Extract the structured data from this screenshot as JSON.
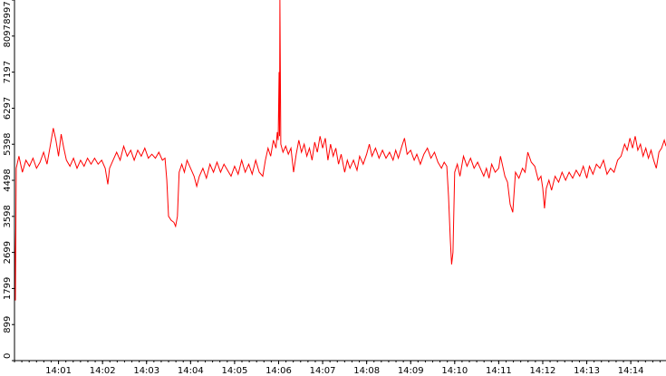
{
  "chart_data": {
    "type": "line",
    "title": "",
    "xlabel": "",
    "ylabel": "",
    "x_ticks": [
      "14:01",
      "14:02",
      "14:03",
      "14:04",
      "14:05",
      "14:06",
      "14:07",
      "14:08",
      "14:09",
      "14:10",
      "14:11",
      "14:12",
      "14:13",
      "14:14"
    ],
    "y_ticks": [
      "0",
      "899",
      "1799",
      "2699",
      "3598",
      "4498",
      "5398",
      "6297",
      "7197",
      "8097",
      "8997"
    ],
    "ylim": [
      0,
      8997
    ],
    "xlim_minutes": [
      0.0,
      14.8
    ],
    "grid": false,
    "legend": "none",
    "series": [
      {
        "color": "#ff0000",
        "points": [
          [
            0.0,
            3300
          ],
          [
            0.02,
            1500
          ],
          [
            0.04,
            4800
          ],
          [
            0.1,
            5100
          ],
          [
            0.18,
            4700
          ],
          [
            0.26,
            5000
          ],
          [
            0.34,
            4850
          ],
          [
            0.42,
            5050
          ],
          [
            0.5,
            4800
          ],
          [
            0.58,
            4950
          ],
          [
            0.66,
            5200
          ],
          [
            0.74,
            4900
          ],
          [
            0.82,
            5400
          ],
          [
            0.88,
            5800
          ],
          [
            0.94,
            5500
          ],
          [
            1.0,
            5100
          ],
          [
            1.06,
            5650
          ],
          [
            1.12,
            5300
          ],
          [
            1.18,
            5000
          ],
          [
            1.26,
            4850
          ],
          [
            1.34,
            5050
          ],
          [
            1.42,
            4800
          ],
          [
            1.5,
            5000
          ],
          [
            1.58,
            4850
          ],
          [
            1.66,
            5050
          ],
          [
            1.74,
            4900
          ],
          [
            1.82,
            5050
          ],
          [
            1.9,
            4900
          ],
          [
            1.98,
            5000
          ],
          [
            2.06,
            4800
          ],
          [
            2.12,
            4400
          ],
          [
            2.16,
            4800
          ],
          [
            2.24,
            5000
          ],
          [
            2.32,
            5200
          ],
          [
            2.4,
            5000
          ],
          [
            2.48,
            5350
          ],
          [
            2.56,
            5100
          ],
          [
            2.64,
            5250
          ],
          [
            2.72,
            5000
          ],
          [
            2.8,
            5250
          ],
          [
            2.88,
            5100
          ],
          [
            2.96,
            5300
          ],
          [
            3.04,
            5050
          ],
          [
            3.12,
            5150
          ],
          [
            3.2,
            5050
          ],
          [
            3.28,
            5200
          ],
          [
            3.36,
            5000
          ],
          [
            3.42,
            5050
          ],
          [
            3.46,
            4500
          ],
          [
            3.5,
            3600
          ],
          [
            3.56,
            3500
          ],
          [
            3.62,
            3450
          ],
          [
            3.66,
            3350
          ],
          [
            3.7,
            3600
          ],
          [
            3.74,
            4700
          ],
          [
            3.8,
            4900
          ],
          [
            3.86,
            4700
          ],
          [
            3.92,
            5000
          ],
          [
            4.0,
            4800
          ],
          [
            4.08,
            4600
          ],
          [
            4.14,
            4350
          ],
          [
            4.2,
            4600
          ],
          [
            4.28,
            4800
          ],
          [
            4.36,
            4550
          ],
          [
            4.44,
            4900
          ],
          [
            4.52,
            4700
          ],
          [
            4.6,
            4950
          ],
          [
            4.68,
            4700
          ],
          [
            4.76,
            4900
          ],
          [
            4.84,
            4750
          ],
          [
            4.92,
            4600
          ],
          [
            5.0,
            4850
          ],
          [
            5.08,
            4650
          ],
          [
            5.16,
            5000
          ],
          [
            5.24,
            4700
          ],
          [
            5.32,
            4900
          ],
          [
            5.4,
            4650
          ],
          [
            5.48,
            5000
          ],
          [
            5.56,
            4700
          ],
          [
            5.64,
            4600
          ],
          [
            5.7,
            5000
          ],
          [
            5.76,
            5300
          ],
          [
            5.82,
            5100
          ],
          [
            5.88,
            5500
          ],
          [
            5.94,
            5300
          ],
          [
            5.97,
            5700
          ],
          [
            5.99,
            5500
          ],
          [
            6.01,
            7200
          ],
          [
            6.02,
            5600
          ],
          [
            6.03,
            9000
          ],
          [
            6.05,
            5400
          ],
          [
            6.1,
            5200
          ],
          [
            6.16,
            5350
          ],
          [
            6.22,
            5150
          ],
          [
            6.28,
            5300
          ],
          [
            6.34,
            4700
          ],
          [
            6.4,
            5150
          ],
          [
            6.46,
            5500
          ],
          [
            6.52,
            5200
          ],
          [
            6.58,
            5400
          ],
          [
            6.64,
            5100
          ],
          [
            6.7,
            5300
          ],
          [
            6.76,
            5000
          ],
          [
            6.82,
            5450
          ],
          [
            6.88,
            5200
          ],
          [
            6.94,
            5600
          ],
          [
            7.0,
            5300
          ],
          [
            7.06,
            5550
          ],
          [
            7.12,
            5000
          ],
          [
            7.18,
            5400
          ],
          [
            7.24,
            5100
          ],
          [
            7.3,
            5300
          ],
          [
            7.36,
            4900
          ],
          [
            7.42,
            5150
          ],
          [
            7.5,
            4700
          ],
          [
            7.56,
            5000
          ],
          [
            7.62,
            4800
          ],
          [
            7.7,
            5000
          ],
          [
            7.78,
            4750
          ],
          [
            7.84,
            5100
          ],
          [
            7.92,
            4900
          ],
          [
            8.0,
            5150
          ],
          [
            8.06,
            5400
          ],
          [
            8.12,
            5100
          ],
          [
            8.2,
            5300
          ],
          [
            8.28,
            5050
          ],
          [
            8.36,
            5250
          ],
          [
            8.44,
            5050
          ],
          [
            8.52,
            5200
          ],
          [
            8.6,
            5000
          ],
          [
            8.66,
            5250
          ],
          [
            8.72,
            5050
          ],
          [
            8.8,
            5350
          ],
          [
            8.86,
            5550
          ],
          [
            8.92,
            5150
          ],
          [
            9.0,
            5250
          ],
          [
            9.08,
            5000
          ],
          [
            9.14,
            5150
          ],
          [
            9.22,
            4900
          ],
          [
            9.3,
            5150
          ],
          [
            9.38,
            5300
          ],
          [
            9.46,
            5050
          ],
          [
            9.54,
            5200
          ],
          [
            9.62,
            4950
          ],
          [
            9.7,
            4800
          ],
          [
            9.76,
            4950
          ],
          [
            9.82,
            4850
          ],
          [
            9.86,
            4100
          ],
          [
            9.9,
            3000
          ],
          [
            9.93,
            2400
          ],
          [
            9.96,
            2700
          ],
          [
            10.0,
            4700
          ],
          [
            10.06,
            4900
          ],
          [
            10.12,
            4600
          ],
          [
            10.2,
            5100
          ],
          [
            10.28,
            4850
          ],
          [
            10.36,
            5050
          ],
          [
            10.44,
            4800
          ],
          [
            10.52,
            4950
          ],
          [
            10.6,
            4750
          ],
          [
            10.66,
            4600
          ],
          [
            10.72,
            4800
          ],
          [
            10.78,
            4550
          ],
          [
            10.84,
            4900
          ],
          [
            10.92,
            4700
          ],
          [
            11.0,
            4800
          ],
          [
            11.04,
            5100
          ],
          [
            11.08,
            4900
          ],
          [
            11.14,
            4600
          ],
          [
            11.2,
            4450
          ],
          [
            11.26,
            3900
          ],
          [
            11.32,
            3700
          ],
          [
            11.38,
            4700
          ],
          [
            11.46,
            4550
          ],
          [
            11.54,
            4800
          ],
          [
            11.6,
            4700
          ],
          [
            11.66,
            5200
          ],
          [
            11.74,
            4950
          ],
          [
            11.82,
            4850
          ],
          [
            11.9,
            4500
          ],
          [
            11.96,
            4600
          ],
          [
            12.0,
            4300
          ],
          [
            12.04,
            3800
          ],
          [
            12.08,
            4300
          ],
          [
            12.14,
            4500
          ],
          [
            12.2,
            4250
          ],
          [
            12.28,
            4600
          ],
          [
            12.36,
            4450
          ],
          [
            12.44,
            4700
          ],
          [
            12.52,
            4500
          ],
          [
            12.6,
            4700
          ],
          [
            12.68,
            4550
          ],
          [
            12.76,
            4750
          ],
          [
            12.84,
            4600
          ],
          [
            12.92,
            4850
          ],
          [
            13.0,
            4550
          ],
          [
            13.06,
            4850
          ],
          [
            13.14,
            4650
          ],
          [
            13.22,
            4900
          ],
          [
            13.3,
            4800
          ],
          [
            13.38,
            5000
          ],
          [
            13.46,
            4650
          ],
          [
            13.54,
            4800
          ],
          [
            13.62,
            4700
          ],
          [
            13.7,
            5000
          ],
          [
            13.78,
            5100
          ],
          [
            13.86,
            5400
          ],
          [
            13.92,
            5250
          ],
          [
            13.98,
            5550
          ],
          [
            14.04,
            5300
          ],
          [
            14.1,
            5600
          ],
          [
            14.16,
            5250
          ],
          [
            14.22,
            5400
          ],
          [
            14.28,
            5100
          ],
          [
            14.34,
            5300
          ],
          [
            14.4,
            5050
          ],
          [
            14.46,
            5250
          ],
          [
            14.52,
            5000
          ],
          [
            14.58,
            4800
          ],
          [
            14.64,
            5200
          ],
          [
            14.7,
            5300
          ],
          [
            14.76,
            5500
          ],
          [
            14.8,
            5350
          ]
        ]
      }
    ]
  }
}
